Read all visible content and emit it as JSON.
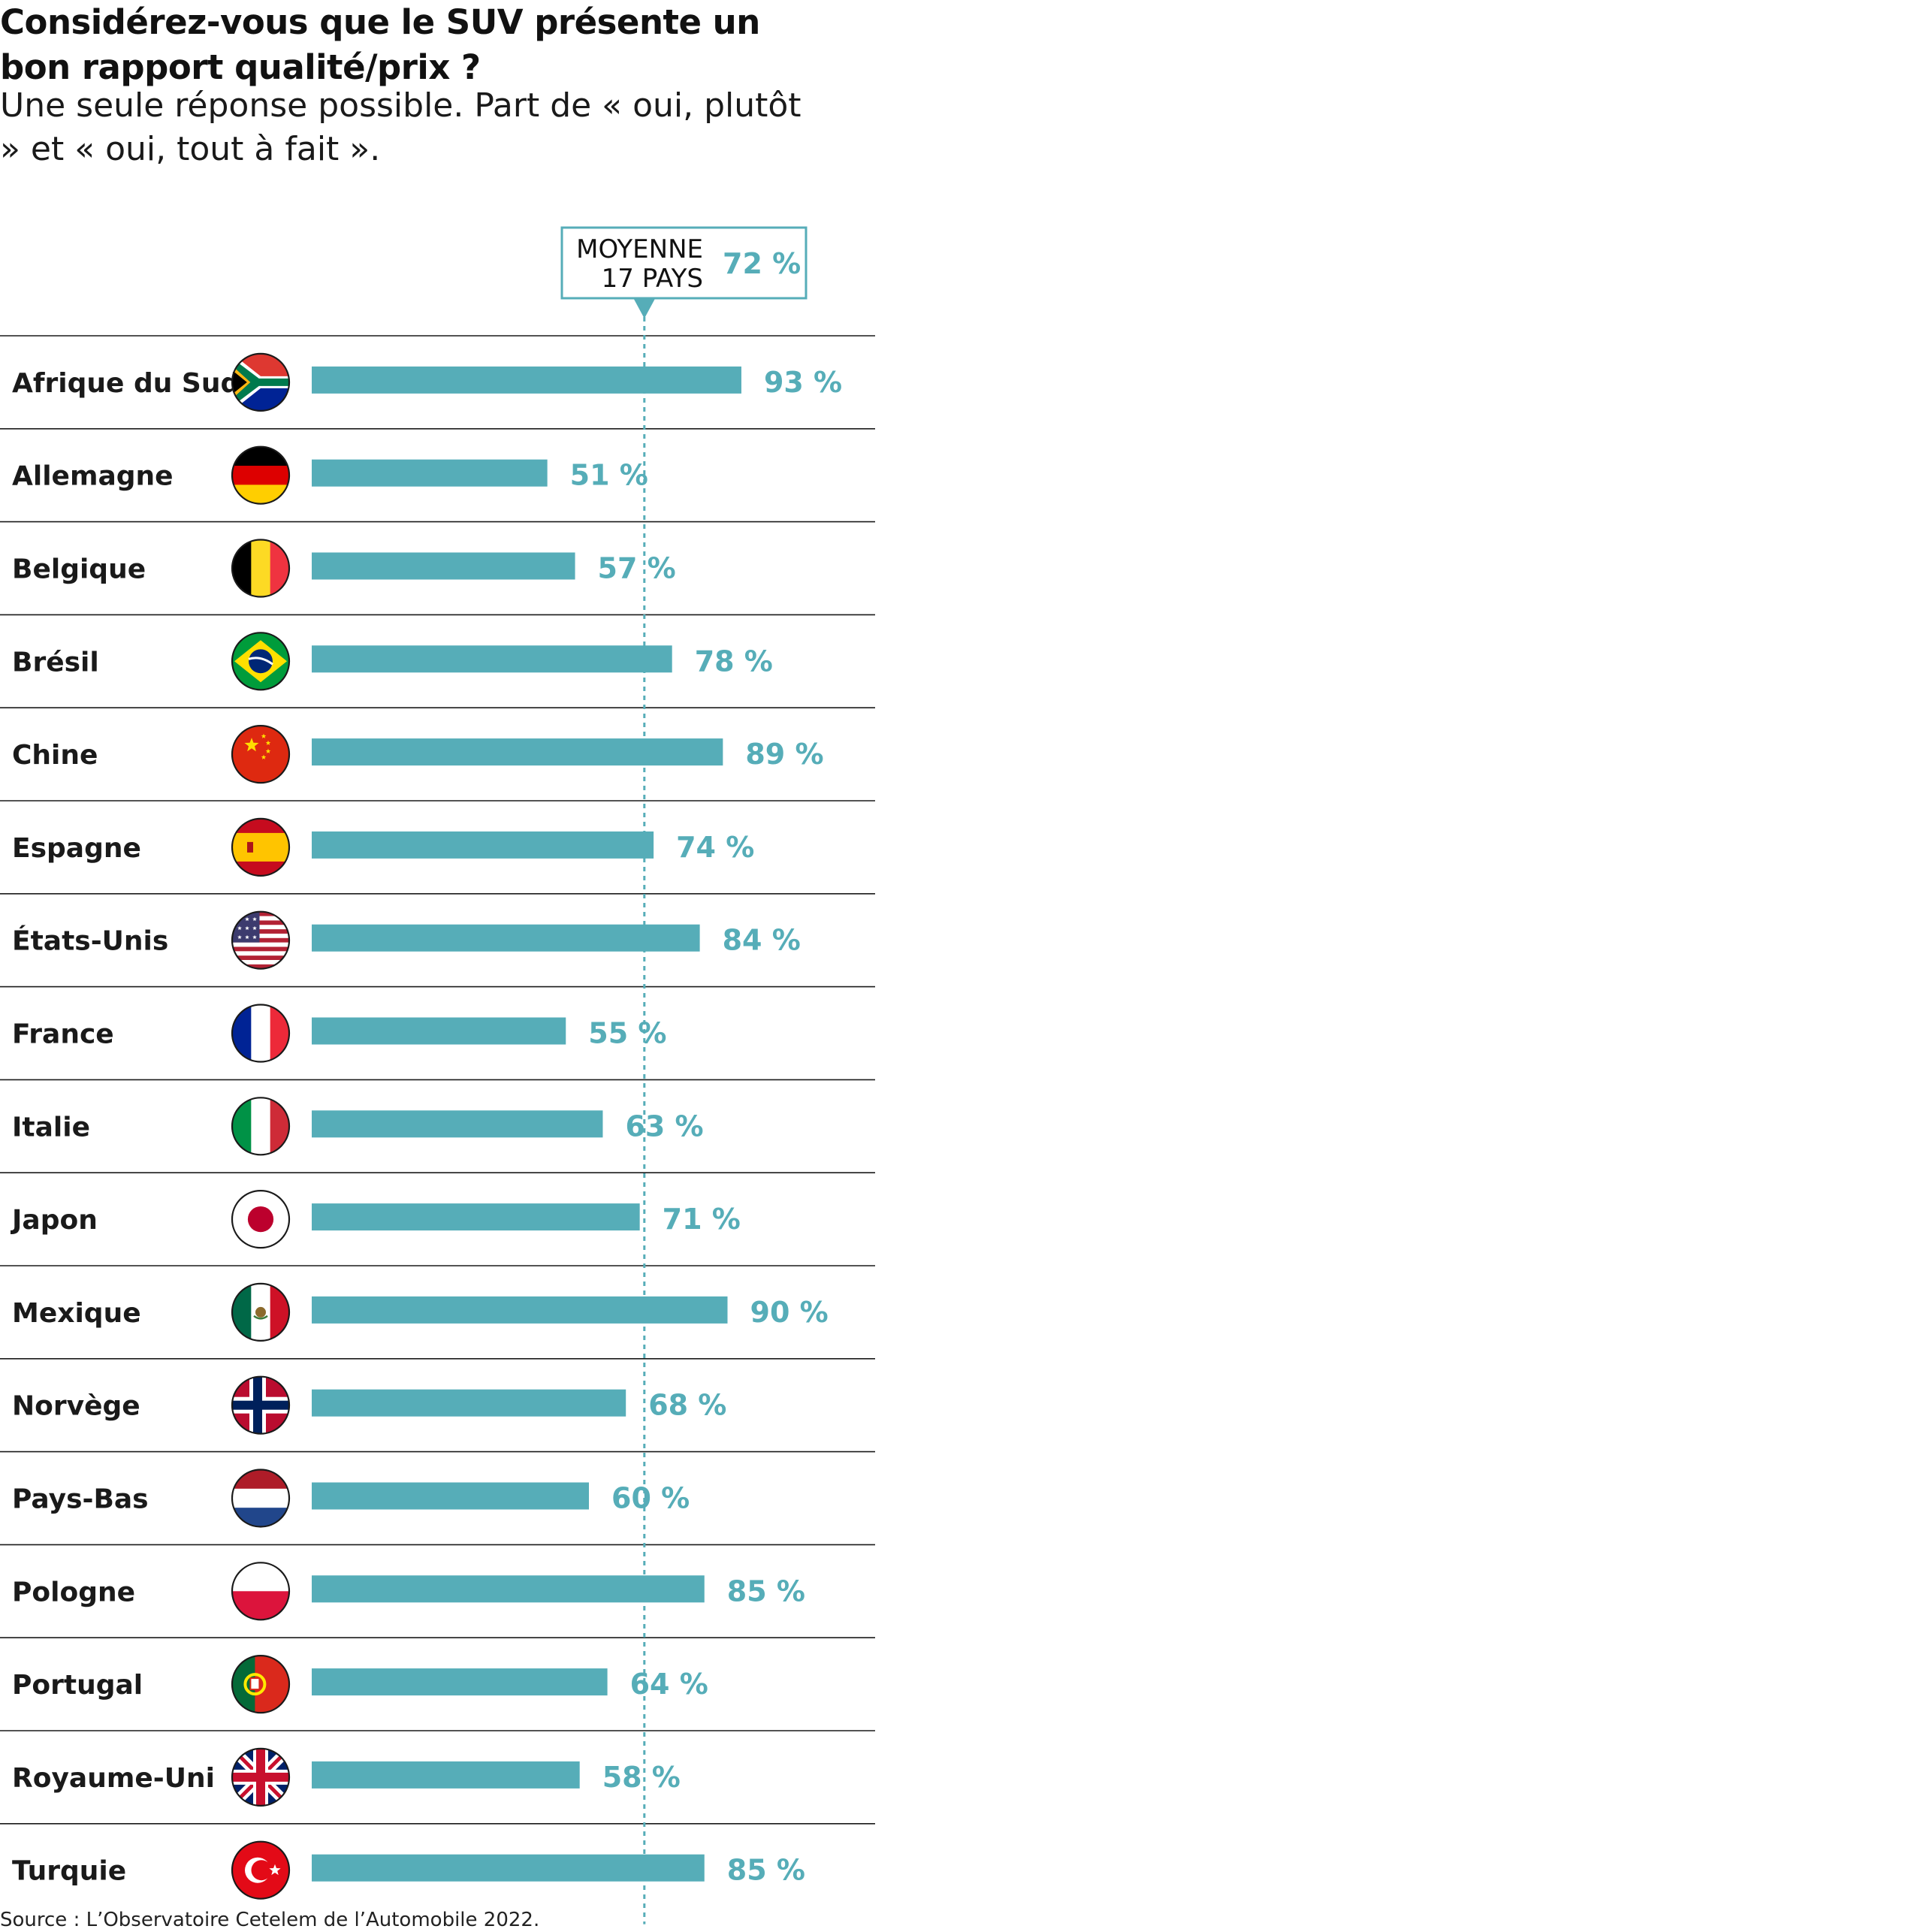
{
  "title": "Considérez-vous que le SUV présente un bon rapport qualité/prix ?",
  "subtitle": "Une seule réponse possible. Part de « oui, plutôt » et « oui, tout à fait ».",
  "source": "Source : L’Observatoire Cetelem de l’Automobile 2022.",
  "colors": {
    "bar": "#56adb8",
    "value_text": "#56adb8",
    "grid": "#1a1a1a",
    "avg_line": "#56adb8"
  },
  "average": {
    "label_line1": "MOYENNE",
    "label_line2": "17 PAYS",
    "value": 72,
    "value_label": "72 %"
  },
  "chart_data": {
    "type": "bar",
    "orientation": "horizontal",
    "title": "Considérez-vous que le SUV présente un bon rapport qualité/prix ?",
    "xlabel": "",
    "ylabel": "",
    "xlim": [
      0,
      100
    ],
    "unit": "%",
    "categories": [
      "Afrique du Sud",
      "Allemagne",
      "Belgique",
      "Brésil",
      "Chine",
      "Espagne",
      "États-Unis",
      "France",
      "Italie",
      "Japon",
      "Mexique",
      "Norvège",
      "Pays-Bas",
      "Pologne",
      "Portugal",
      "Royaume-Uni",
      "Turquie"
    ],
    "values": [
      93,
      51,
      57,
      78,
      89,
      74,
      84,
      55,
      63,
      71,
      90,
      68,
      60,
      85,
      64,
      58,
      85
    ],
    "value_labels": [
      "93 %",
      "51 %",
      "57 %",
      "78 %",
      "89 %",
      "74 %",
      "84 %",
      "55 %",
      "63 %",
      "71 %",
      "90 %",
      "68 %",
      "60 %",
      "85 %",
      "64 %",
      "58 %",
      "85 %"
    ],
    "flag_icons": [
      "south-africa-flag-icon",
      "germany-flag-icon",
      "belgium-flag-icon",
      "brazil-flag-icon",
      "china-flag-icon",
      "spain-flag-icon",
      "usa-flag-icon",
      "france-flag-icon",
      "italy-flag-icon",
      "japan-flag-icon",
      "mexico-flag-icon",
      "norway-flag-icon",
      "netherlands-flag-icon",
      "poland-flag-icon",
      "portugal-flag-icon",
      "uk-flag-icon",
      "turkey-flag-icon"
    ],
    "reference_line": {
      "label": "MOYENNE 17 PAYS",
      "value": 72
    }
  }
}
